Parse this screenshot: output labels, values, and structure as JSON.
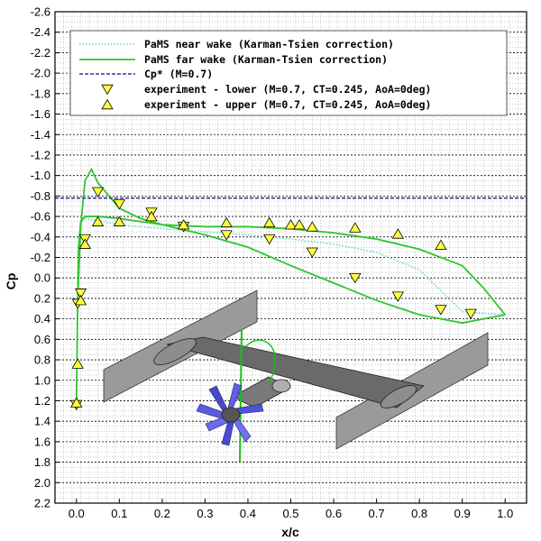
{
  "chart_data": {
    "type": "line",
    "xlabel": "x/c",
    "ylabel": "Cp",
    "xlim": [
      -0.05,
      1.05
    ],
    "ylim": [
      2.2,
      -2.6
    ],
    "y_inverted": true,
    "grid": true,
    "legend_position": "top-right",
    "x_ticks": [
      "0.0",
      "0.1",
      "0.2",
      "0.3",
      "0.4",
      "0.5",
      "0.6",
      "0.7",
      "0.8",
      "0.9",
      "1.0"
    ],
    "y_ticks": [
      "-2.6",
      "-2.4",
      "-2.2",
      "-2.0",
      "-1.8",
      "-1.6",
      "-1.4",
      "-1.2",
      "-1.0",
      "-0.8",
      "-0.6",
      "-0.4",
      "-0.2",
      "0.0",
      "0.2",
      "0.4",
      "0.6",
      "0.8",
      "1.0",
      "1.2",
      "1.4",
      "1.6",
      "1.8",
      "2.0",
      "2.2"
    ],
    "series": [
      {
        "name": "PaMS near wake (Karman-Tsien correction)",
        "style": "dotted",
        "color": "#6fd3c5",
        "x": [
          1.0,
          0.9,
          0.8,
          0.7,
          0.6,
          0.5,
          0.4,
          0.3,
          0.2,
          0.1,
          0.05,
          0.02,
          0.01,
          0.005,
          0.003
        ],
        "y": [
          0.36,
          0.33,
          -0.08,
          -0.25,
          -0.33,
          -0.38,
          -0.42,
          -0.45,
          -0.48,
          -0.52,
          -0.56,
          -0.58,
          -0.55,
          -0.3,
          0.2
        ]
      },
      {
        "name": "PaMS far  wake (Karman-Tsien correction)",
        "style": "solid",
        "color": "#2fc52f",
        "x": [
          1.0,
          0.9,
          0.8,
          0.7,
          0.6,
          0.5,
          0.4,
          0.3,
          0.2,
          0.1,
          0.05,
          0.02,
          0.01,
          0.005,
          0.003,
          0.0,
          0.003,
          0.01,
          0.02,
          0.035,
          0.05,
          0.08,
          0.1,
          0.15,
          0.2,
          0.3,
          0.4,
          0.5,
          0.6,
          0.7,
          0.8,
          0.9,
          0.95,
          1.0
        ],
        "y": [
          0.36,
          0.44,
          0.36,
          0.22,
          0.05,
          -0.12,
          -0.3,
          -0.42,
          -0.52,
          -0.58,
          -0.6,
          -0.6,
          -0.55,
          -0.3,
          0.2,
          1.2,
          0.2,
          -0.5,
          -0.95,
          -1.06,
          -0.93,
          -0.78,
          -0.68,
          -0.58,
          -0.52,
          -0.5,
          -0.5,
          -0.48,
          -0.44,
          -0.38,
          -0.28,
          -0.12,
          0.1,
          0.36
        ]
      },
      {
        "name": "Cp* (M=0.7)",
        "style": "dashed",
        "color": "#2a3a9f",
        "x": [
          -0.05,
          1.05
        ],
        "y": [
          -0.78,
          -0.78
        ]
      },
      {
        "name": "experiment - lower (M=0.7, CT=0.245, AoA=0deg)",
        "style": "marker-down-triangle",
        "color": "#ffff3c",
        "x": [
          0.0,
          0.003,
          0.01,
          0.02,
          0.05,
          0.1,
          0.175,
          0.25,
          0.35,
          0.45,
          0.55,
          0.65,
          0.75,
          0.85,
          0.92
        ],
        "y": [
          1.24,
          0.25,
          0.15,
          -0.38,
          -0.84,
          -0.72,
          -0.64,
          -0.5,
          -0.42,
          -0.38,
          -0.25,
          0.0,
          0.18,
          0.31,
          0.35
        ]
      },
      {
        "name": "experiment - upper (M=0.7, CT=0.245, AoA=0deg)",
        "style": "marker-up-triangle",
        "color": "#ffff3c",
        "x": [
          0.0,
          0.003,
          0.01,
          0.02,
          0.05,
          0.1,
          0.175,
          0.25,
          0.35,
          0.45,
          0.5,
          0.52,
          0.55,
          0.65,
          0.75,
          0.85
        ],
        "y": [
          1.22,
          0.84,
          0.22,
          -0.33,
          -0.55,
          -0.55,
          -0.6,
          -0.52,
          -0.54,
          -0.54,
          -0.52,
          -0.52,
          -0.5,
          -0.49,
          -0.43,
          -0.32
        ]
      }
    ]
  },
  "colors": {
    "grid_minor": "#9a9a9a",
    "grid_major": "#000000",
    "near_wake": "#6fd3c5",
    "far_wake": "#2fc52f",
    "cp_star": "#2a3a9f",
    "marker_fill": "#ffff3c",
    "inset_wing": "#8a8a8a",
    "inset_propeller": "#5a5ae0"
  },
  "inset_graphic": "wing-propeller-model-render"
}
